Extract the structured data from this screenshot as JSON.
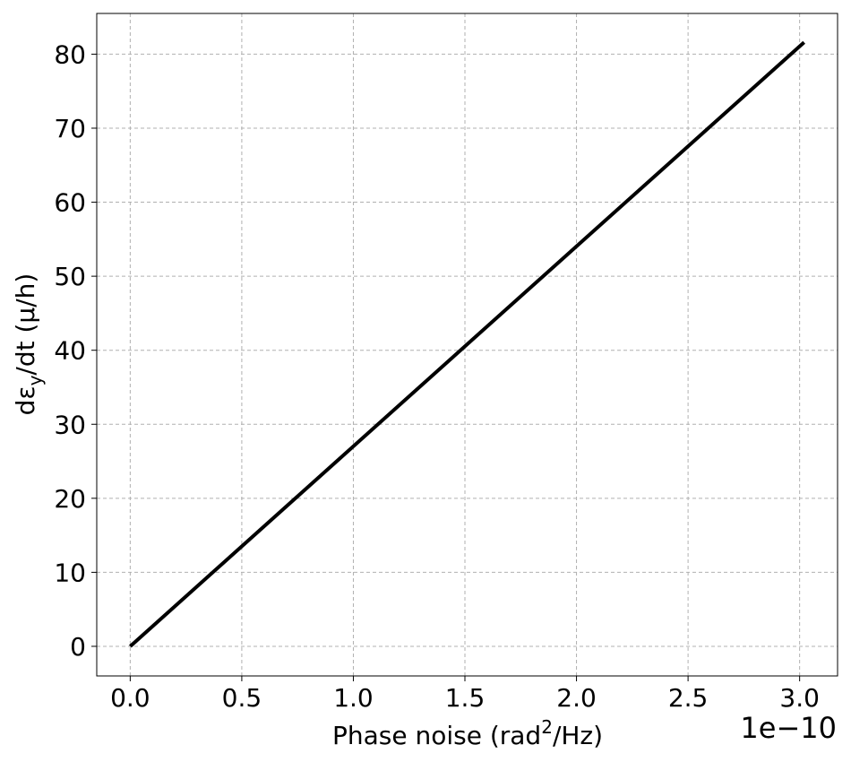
{
  "chart_data": {
    "type": "line",
    "title": "",
    "xlabel": {
      "prefix": "Phase noise (rad",
      "superscript": "2",
      "suffix": "/Hz)"
    },
    "ylabel": {
      "prefix": "dε",
      "subscript": "y",
      "suffix": "/dt (μ/h)"
    },
    "x_offset_text": "1e−10",
    "xlim": [
      -0.15,
      3.17
    ],
    "ylim": [
      -4,
      85.5
    ],
    "x_ticks": [
      0.0,
      0.5,
      1.0,
      1.5,
      2.0,
      2.5,
      3.0
    ],
    "x_tick_labels": [
      "0.0",
      "0.5",
      "1.0",
      "1.5",
      "2.0",
      "2.5",
      "3.0"
    ],
    "y_ticks": [
      0,
      10,
      20,
      30,
      40,
      50,
      60,
      70,
      80
    ],
    "y_tick_labels": [
      "0",
      "10",
      "20",
      "30",
      "40",
      "50",
      "60",
      "70",
      "80"
    ],
    "grid": true,
    "series": [
      {
        "color": "#000000",
        "x": [
          0.0,
          3.02
        ],
        "y": [
          0.0,
          81.6
        ]
      }
    ]
  }
}
